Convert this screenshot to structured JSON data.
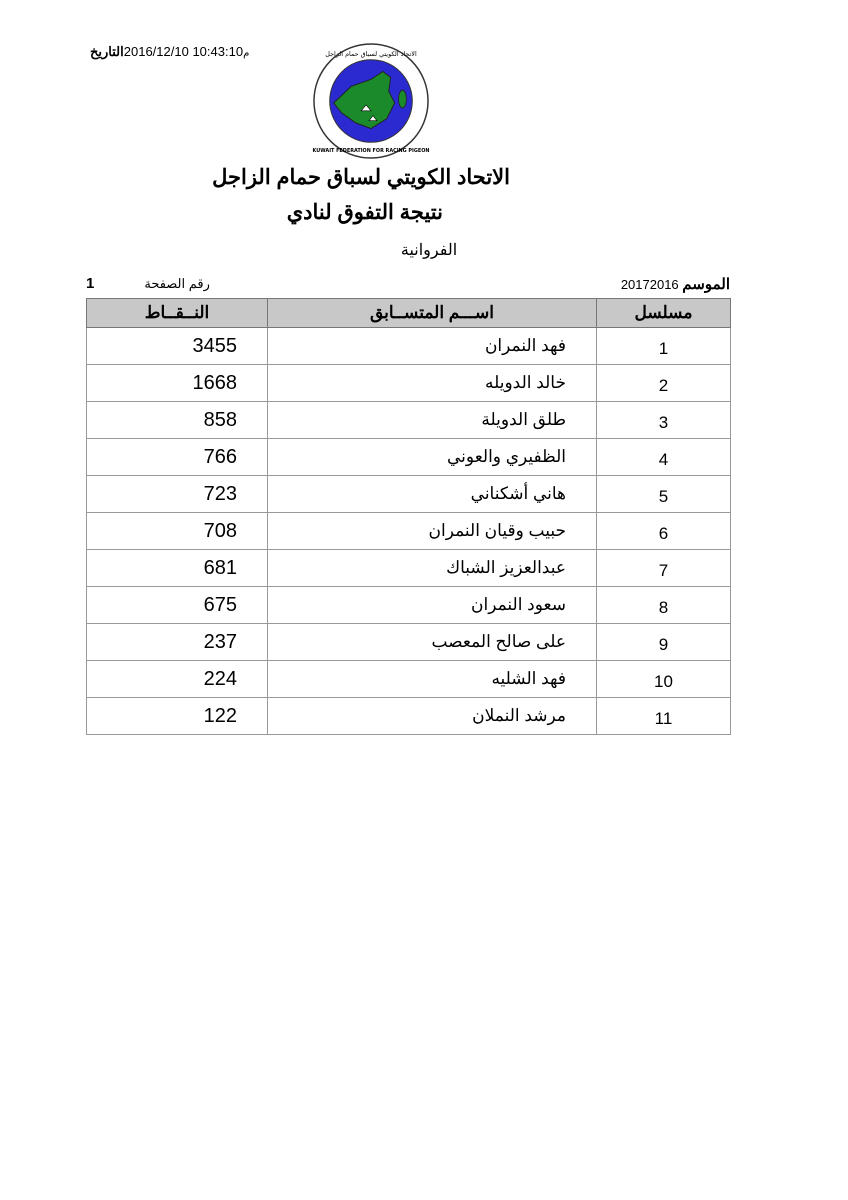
{
  "header": {
    "date_label": "التاريخ",
    "date_value": "10:43:10 2016/12/10",
    "ampm": "م"
  },
  "logo": {
    "arabic_text": "الاتحاد الكويتي لسباق حمام الزاجل",
    "english_text": "KUWAIT FEDERATION FOR RACING PIGEON",
    "colors": {
      "ring": "#ffffff",
      "inner": "#2a2ad0",
      "land": "#1a8a2a"
    }
  },
  "title": "الاتحاد الكويتي لسباق حمام الزاجل",
  "subtitle": "نتيجة التفوق لنادي",
  "club": "الفروانية",
  "season": {
    "label": "الموسم",
    "value": "20172016"
  },
  "page": {
    "label": "رقم الصفحة",
    "value": "1"
  },
  "table": {
    "headers": {
      "serial": "مسلسل",
      "name": "اســـم المتســابق",
      "points": "النــقــاط"
    },
    "rows": [
      {
        "serial": "1",
        "name": "فهد النمران",
        "points": "3455"
      },
      {
        "serial": "2",
        "name": "خالد الدويله",
        "points": "1668"
      },
      {
        "serial": "3",
        "name": "طلق الدويلة",
        "points": "858"
      },
      {
        "serial": "4",
        "name": "الظفيري والعوني",
        "points": "766"
      },
      {
        "serial": "5",
        "name": "هاني أشكناني",
        "points": "723"
      },
      {
        "serial": "6",
        "name": "حبيب وقيان النمران",
        "points": "708"
      },
      {
        "serial": "7",
        "name": "عبدالعزيز الشباك",
        "points": "681"
      },
      {
        "serial": "8",
        "name": "سعود النمران",
        "points": "675"
      },
      {
        "serial": "9",
        "name": "على صالح المعصب",
        "points": "237"
      },
      {
        "serial": "10",
        "name": "فهد الشليه",
        "points": "224"
      },
      {
        "serial": "11",
        "name": "مرشد النملان",
        "points": "122"
      }
    ]
  }
}
